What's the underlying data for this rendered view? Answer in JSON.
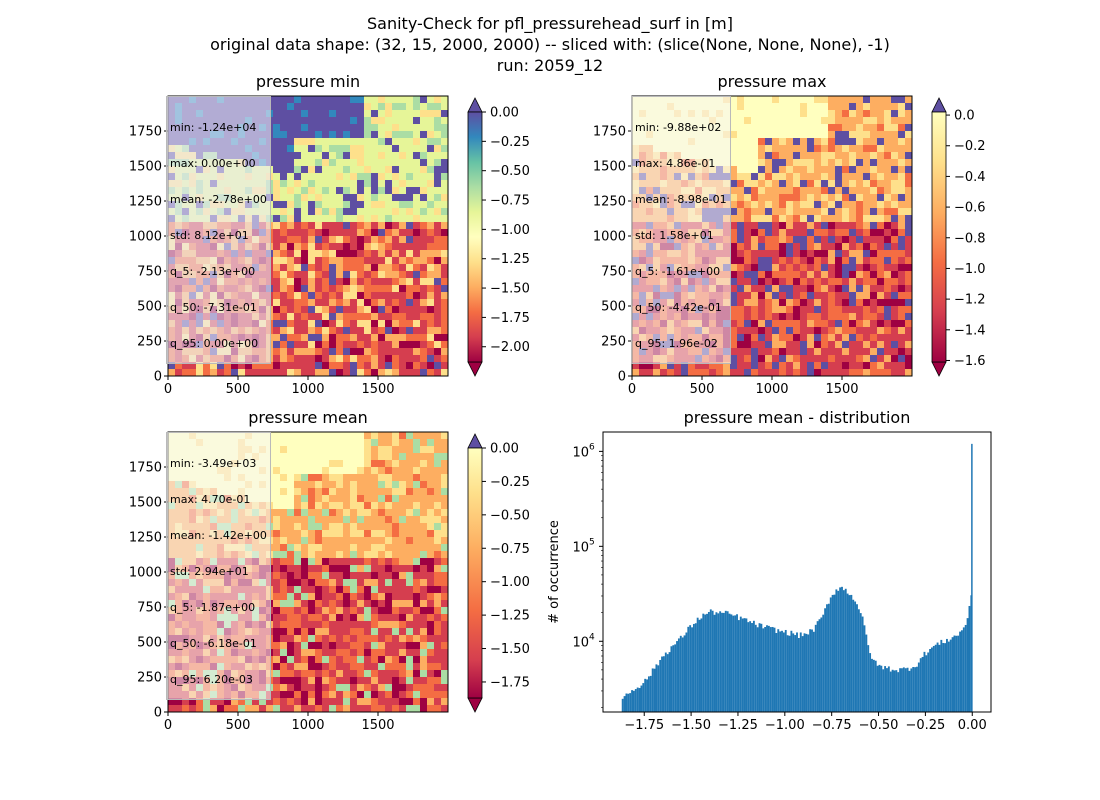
{
  "figure": {
    "suptitle": [
      "Sanity-Check for pfl_pressurehead_surf in [m]",
      "original data shape: (32, 15, 2000, 2000) -- sliced with: (slice(None, None, None), -1)",
      "run: 2059_12"
    ]
  },
  "panels": {
    "min": {
      "title": "pressure min",
      "stats": [
        "min: -1.24e+04",
        "max: 0.00e+00",
        "mean: -2.78e+00",
        "std: 8.12e+01",
        "q_5: -2.13e+00",
        "q_50: -7.31e-01",
        "q_95: 0.00e+00"
      ],
      "colorbar": {
        "ticks": [
          "0.00",
          "-0.25",
          "-0.50",
          "-0.75",
          "-1.00",
          "-1.25",
          "-1.50",
          "-1.75",
          "-2.00"
        ],
        "extend": "both"
      }
    },
    "max": {
      "title": "pressure max",
      "stats": [
        "min: -9.88e+02",
        "max: 4.86e-01",
        "mean: -8.98e-01",
        "std: 1.58e+01",
        "q_5: -1.61e+00",
        "q_50: -4.42e-01",
        "q_95: 1.96e-02"
      ],
      "colorbar": {
        "ticks": [
          "0.0",
          "-0.2",
          "-0.4",
          "-0.6",
          "-0.8",
          "-1.0",
          "-1.2",
          "-1.4",
          "-1.6"
        ],
        "extend": "both"
      }
    },
    "mean": {
      "title": "pressure mean",
      "stats": [
        "min: -3.49e+03",
        "max: 4.70e-01",
        "mean: -1.42e+00",
        "std: 2.94e+01",
        "q_5: -1.87e+00",
        "q_50: -6.18e-01",
        "q_95: 6.20e-03"
      ],
      "colorbar": {
        "ticks": [
          "0.00",
          "-0.25",
          "-0.50",
          "-0.75",
          "-1.00",
          "-1.25",
          "-1.50",
          "-1.75"
        ],
        "extend": "both"
      }
    }
  },
  "map_axes": {
    "xticks": [
      "0",
      "500",
      "1000",
      "1500"
    ],
    "yticks": [
      "0",
      "250",
      "500",
      "750",
      "1000",
      "1250",
      "1500",
      "1750"
    ]
  },
  "colors": {
    "bar": "#1f77b4",
    "spectral": [
      "#9e0142",
      "#d53e4f",
      "#f46d43",
      "#fdae61",
      "#fee08b",
      "#ffffbf",
      "#e6f598",
      "#abdda4",
      "#66c2a5",
      "#3288bd",
      "#5e4fa2"
    ]
  },
  "chart_data": [
    {
      "type": "heatmap",
      "title": "pressure min",
      "xlim": [
        0,
        2000
      ],
      "ylim": [
        0,
        2000
      ],
      "xticks": [
        0,
        500,
        1000,
        1500
      ],
      "yticks": [
        0,
        250,
        500,
        750,
        1000,
        1250,
        1500,
        1750
      ],
      "colorbar_range": [
        -2.13,
        0.0
      ]
    },
    {
      "type": "heatmap",
      "title": "pressure max",
      "xlim": [
        0,
        2000
      ],
      "ylim": [
        0,
        2000
      ],
      "xticks": [
        0,
        500,
        1000,
        1500
      ],
      "yticks": [
        0,
        250,
        500,
        750,
        1000,
        1250,
        1500,
        1750
      ],
      "colorbar_range": [
        -1.61,
        0.02
      ]
    },
    {
      "type": "heatmap",
      "title": "pressure mean",
      "xlim": [
        0,
        2000
      ],
      "ylim": [
        0,
        2000
      ],
      "xticks": [
        0,
        500,
        1000,
        1500
      ],
      "yticks": [
        0,
        250,
        500,
        750,
        1000,
        1250,
        1500,
        1750
      ],
      "colorbar_range": [
        -1.87,
        0.0
      ]
    },
    {
      "type": "bar",
      "title": "pressure mean - distribution",
      "ylabel": "# of occurrence",
      "yscale": "log",
      "xlim": [
        -1.97,
        0.1
      ],
      "ylim": [
        1800,
        1600000
      ],
      "xtick_labels": [
        "−1.75",
        "−1.50",
        "−1.25",
        "−1.00",
        "−0.75",
        "−0.50",
        "−0.25",
        "0.00"
      ],
      "xticks": [
        -1.75,
        -1.5,
        -1.25,
        -1.0,
        -0.75,
        -0.5,
        -0.25,
        0.0
      ],
      "ytick_labels": [
        "10",
        "10",
        "10"
      ],
      "ytick_exponents": [
        "4",
        "5",
        "6"
      ],
      "yticks": [
        10000,
        100000,
        1000000
      ],
      "histogram_profile": [
        [
          -1.87,
          2500
        ],
        [
          -1.8,
          3200
        ],
        [
          -1.75,
          3700
        ],
        [
          -1.7,
          5000
        ],
        [
          -1.65,
          7000
        ],
        [
          -1.6,
          8800
        ],
        [
          -1.55,
          11000
        ],
        [
          -1.5,
          14500
        ],
        [
          -1.45,
          18000
        ],
        [
          -1.4,
          20500
        ],
        [
          -1.35,
          20000
        ],
        [
          -1.3,
          19500
        ],
        [
          -1.25,
          18000
        ],
        [
          -1.2,
          16500
        ],
        [
          -1.15,
          15000
        ],
        [
          -1.1,
          14000
        ],
        [
          -1.05,
          13200
        ],
        [
          -1.0,
          12500
        ],
        [
          -0.95,
          12000
        ],
        [
          -0.92,
          11500
        ],
        [
          -0.9,
          11800
        ],
        [
          -0.85,
          13000
        ],
        [
          -0.8,
          18000
        ],
        [
          -0.76,
          28000
        ],
        [
          -0.72,
          36000
        ],
        [
          -0.7,
          37000
        ],
        [
          -0.67,
          34000
        ],
        [
          -0.64,
          30000
        ],
        [
          -0.61,
          24000
        ],
        [
          -0.58,
          16000
        ],
        [
          -0.55,
          8000
        ],
        [
          -0.52,
          6000
        ],
        [
          -0.5,
          5500
        ],
        [
          -0.45,
          5200
        ],
        [
          -0.4,
          5000
        ],
        [
          -0.35,
          5100
        ],
        [
          -0.3,
          5600
        ],
        [
          -0.25,
          7500
        ],
        [
          -0.2,
          9000
        ],
        [
          -0.15,
          10000
        ],
        [
          -0.1,
          11000
        ],
        [
          -0.06,
          12500
        ],
        [
          -0.03,
          16000
        ],
        [
          -0.015,
          22000
        ],
        [
          -0.005,
          30000
        ],
        [
          0.0,
          1200000
        ]
      ]
    }
  ]
}
